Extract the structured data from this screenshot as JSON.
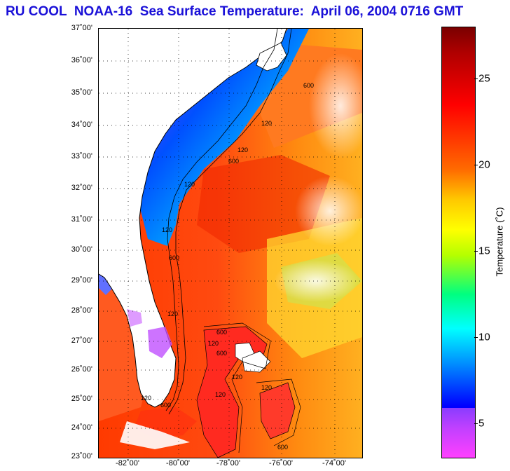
{
  "title": "RU COOL  NOAA-16  Sea Surface Temperature:  April 06, 2004 0716 GMT",
  "lat_labels": [
    "37˚00'",
    "36˚00'",
    "35˚00'",
    "34˚00'",
    "33˚00'",
    "32˚00'",
    "31˚00'",
    "30˚00'",
    "29˚00'",
    "28˚00'",
    "27˚00'",
    "26˚00'",
    "25˚00'",
    "24˚00'",
    "23˚00'"
  ],
  "lon_labels": [
    "-82˚00'",
    "-80˚00'",
    "-78˚00'",
    "-76˚00'",
    "-74˚00'"
  ],
  "colorbar": {
    "title": "Temperature (˚C)",
    "ticks": [
      "25",
      "20",
      "15",
      "10",
      "5"
    ]
  },
  "bathymetry_labels": [
    "600",
    "120",
    "120",
    "600",
    "120",
    "120",
    "600",
    "120",
    "600",
    "120",
    "120",
    "600",
    "120",
    "120",
    "600",
    "120",
    "600"
  ]
}
